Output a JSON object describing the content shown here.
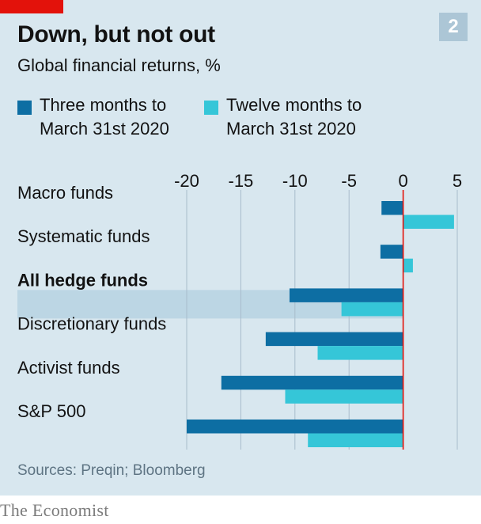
{
  "header": {
    "title": "Down, but not out",
    "subtitle": "Global financial returns, %",
    "chart_number": "2"
  },
  "footer": {
    "source": "Sources: Preqin; Bloomberg",
    "brand": "The Economist"
  },
  "colors": {
    "background": "#d8e7ef",
    "series_three_months": "#0d6ea3",
    "series_twelve_months": "#35c6d8",
    "highlight_band": "#bcd6e4",
    "zero_line": "#e3120b",
    "grid": "#a8bccb",
    "brand_tag": "#e3120b"
  },
  "chart_data": {
    "type": "bar",
    "orientation": "horizontal",
    "categories": [
      "Macro funds",
      "Systematic funds",
      "All hedge funds",
      "Discretionary funds",
      "Activist funds",
      "S&P 500"
    ],
    "highlighted_category": "All hedge funds",
    "series": [
      {
        "name": "Three months to March 31st 2020",
        "values": [
          -2,
          -2.1,
          -10.5,
          -12.7,
          -16.8,
          -20
        ]
      },
      {
        "name": "Twelve months to March 31st 2020",
        "values": [
          4.7,
          0.9,
          -5.7,
          -7.9,
          -10.9,
          -8.8
        ]
      }
    ],
    "xlim": [
      -20,
      5
    ],
    "xticks": [
      "-20",
      "-15",
      "-10",
      "-5",
      "0",
      "5"
    ],
    "tick_values": [
      -20,
      -15,
      -10,
      -5,
      0,
      5
    ],
    "grid": true,
    "legend_position": "top-left"
  }
}
